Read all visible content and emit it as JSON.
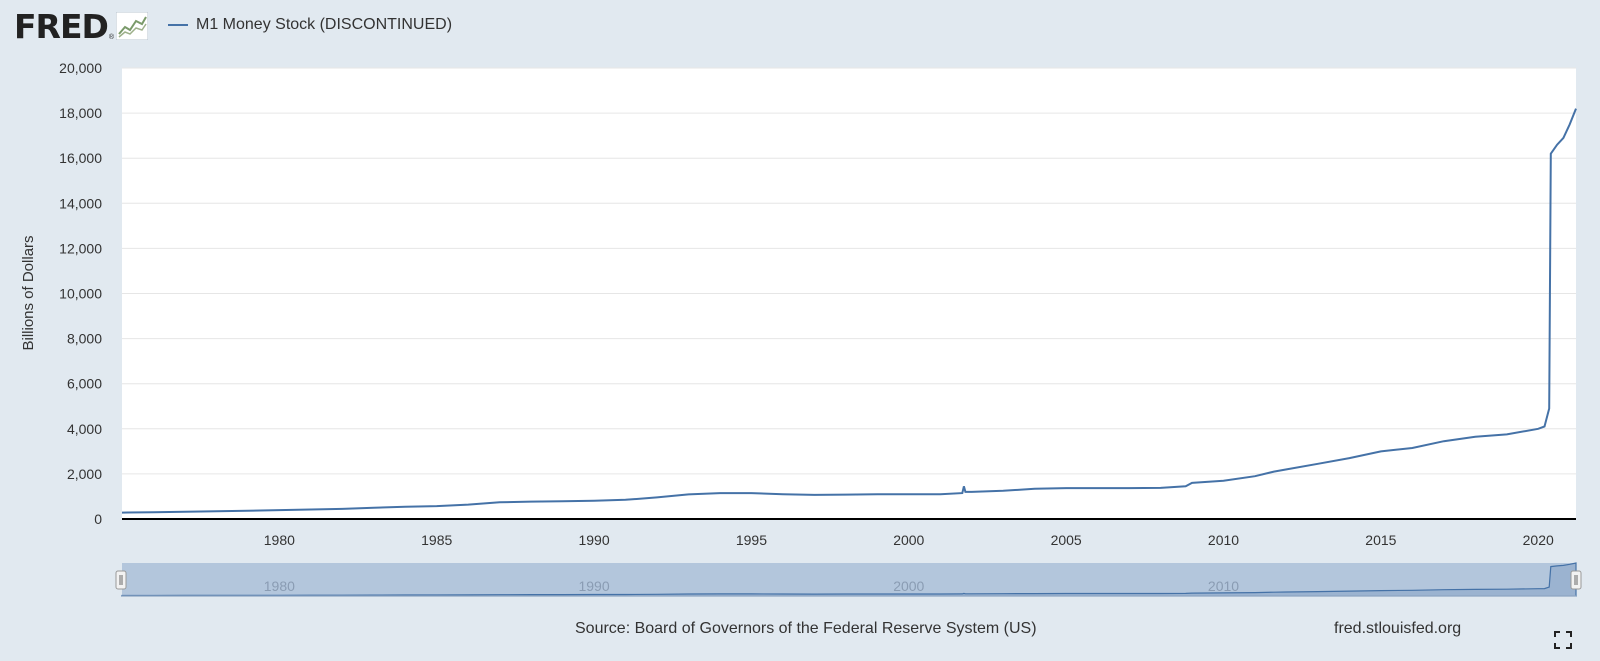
{
  "brand": {
    "logo_text": "FRED",
    "logo_mark": "®"
  },
  "legend": {
    "label": "M1 Money Stock (DISCONTINUED)",
    "color": "#4572a7"
  },
  "chart_data": {
    "type": "line",
    "ylabel": "Billions of Dollars",
    "xlim": [
      1975,
      2021.2
    ],
    "ylim": [
      0,
      20000
    ],
    "y_ticks": [
      0,
      2000,
      4000,
      6000,
      8000,
      10000,
      12000,
      14000,
      16000,
      18000,
      20000
    ],
    "y_tick_labels": [
      "0",
      "2,000",
      "4,000",
      "6,000",
      "8,000",
      "10,000",
      "12,000",
      "14,000",
      "16,000",
      "18,000",
      "20,000"
    ],
    "x_ticks": [
      1980,
      1985,
      1990,
      1995,
      2000,
      2005,
      2010,
      2015,
      2020
    ],
    "x_tick_labels": [
      "1980",
      "1985",
      "1990",
      "1995",
      "2000",
      "2005",
      "2010",
      "2015",
      "2020"
    ],
    "grid": true,
    "series": [
      {
        "name": "M1 Money Stock (DISCONTINUED)",
        "color": "#4572a7",
        "points": [
          [
            1975.0,
            285
          ],
          [
            1976.0,
            300
          ],
          [
            1977.0,
            320
          ],
          [
            1978.0,
            345
          ],
          [
            1979.0,
            370
          ],
          [
            1980.0,
            395
          ],
          [
            1981.0,
            420
          ],
          [
            1982.0,
            450
          ],
          [
            1983.0,
            500
          ],
          [
            1984.0,
            540
          ],
          [
            1985.0,
            570
          ],
          [
            1986.0,
            640
          ],
          [
            1987.0,
            740
          ],
          [
            1988.0,
            770
          ],
          [
            1989.0,
            790
          ],
          [
            1990.0,
            810
          ],
          [
            1991.0,
            850
          ],
          [
            1992.0,
            960
          ],
          [
            1993.0,
            1090
          ],
          [
            1994.0,
            1150
          ],
          [
            1995.0,
            1150
          ],
          [
            1996.0,
            1100
          ],
          [
            1997.0,
            1070
          ],
          [
            1998.0,
            1080
          ],
          [
            1999.0,
            1100
          ],
          [
            2000.0,
            1100
          ],
          [
            2001.0,
            1100
          ],
          [
            2001.7,
            1150
          ],
          [
            2001.75,
            1450
          ],
          [
            2001.8,
            1200
          ],
          [
            2002.0,
            1200
          ],
          [
            2003.0,
            1250
          ],
          [
            2004.0,
            1340
          ],
          [
            2005.0,
            1370
          ],
          [
            2006.0,
            1370
          ],
          [
            2007.0,
            1370
          ],
          [
            2008.0,
            1380
          ],
          [
            2008.8,
            1450
          ],
          [
            2009.0,
            1600
          ],
          [
            2010.0,
            1700
          ],
          [
            2011.0,
            1900
          ],
          [
            2011.6,
            2100
          ],
          [
            2012.0,
            2200
          ],
          [
            2013.0,
            2450
          ],
          [
            2014.0,
            2700
          ],
          [
            2015.0,
            3000
          ],
          [
            2016.0,
            3150
          ],
          [
            2017.0,
            3450
          ],
          [
            2018.0,
            3650
          ],
          [
            2019.0,
            3750
          ],
          [
            2020.0,
            4000
          ],
          [
            2020.2,
            4100
          ],
          [
            2020.35,
            4900
          ],
          [
            2020.4,
            16200
          ],
          [
            2020.6,
            16600
          ],
          [
            2020.8,
            16900
          ],
          [
            2021.0,
            17500
          ],
          [
            2021.2,
            18200
          ]
        ]
      }
    ],
    "navigator": {
      "x_labels": [
        "1980",
        "1990",
        "2000",
        "2010"
      ],
      "x_values": [
        1980,
        1990,
        2000,
        2010
      ]
    }
  },
  "footer": {
    "source": "Source: Board of Governors of the Federal Reserve System (US)",
    "site": "fred.stlouisfed.org"
  },
  "icons": {
    "expand": "expand-icon",
    "chart": "line-chart-icon"
  }
}
